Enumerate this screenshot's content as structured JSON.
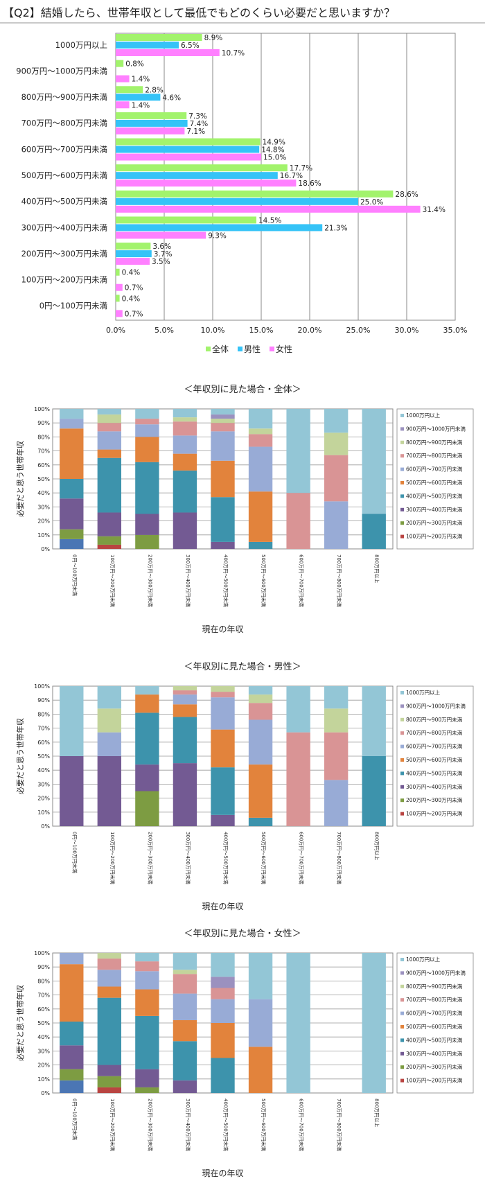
{
  "title": "【Q2】結婚したら、世帯年収として最低でもどのくらい必要だと思いますか？",
  "colors": {
    "all": "#a2f36c",
    "male": "#35c3f7",
    "female": "#ff80ff",
    "c1000": "#93c6d6",
    "c900": "#9b91bf",
    "c800": "#c3d49b",
    "c700": "#d99495",
    "c600": "#98abd6",
    "c500": "#e2833c",
    "c400": "#3d93ac",
    "c300": "#735a93",
    "c200": "#7d9c42",
    "c100": "#b94441",
    "c0": "#4b76b4"
  },
  "chart_data": [
    {
      "type": "bar",
      "orientation": "horizontal",
      "categories": [
        "1000万円以上",
        "900万円～1000万円未満",
        "800万円～900万円未満",
        "700万円～800万円未満",
        "600万円～700万円未満",
        "500万円～600万円未満",
        "400万円～500万円未満",
        "300万円～400万円未満",
        "200万円～300万円未満",
        "100万円～200万円未満",
        "0円～100万円未満"
      ],
      "series": [
        {
          "name": "全体",
          "values": [
            8.9,
            0.8,
            2.8,
            7.3,
            14.9,
            17.7,
            28.6,
            14.5,
            3.6,
            0.4,
            0.4
          ],
          "labels": [
            "8.9%",
            "0.8%",
            "2.8%",
            "7.3%",
            "14.9%",
            "17.7%",
            "28.6%",
            "14.5%",
            "3.6%",
            "0.4%",
            "0.4%"
          ]
        },
        {
          "name": "男性",
          "values": [
            6.5,
            0,
            4.6,
            7.4,
            14.8,
            16.7,
            25.0,
            21.3,
            3.7,
            0,
            0
          ],
          "labels": [
            "6.5%",
            "",
            "4.6%",
            "7.4%",
            "14.8%",
            "16.7%",
            "25.0%",
            "21.3%",
            "3.7%",
            "",
            ""
          ]
        },
        {
          "name": "女性",
          "values": [
            10.7,
            1.4,
            1.4,
            7.1,
            15.0,
            18.6,
            31.4,
            9.3,
            3.5,
            0.7,
            0.7
          ],
          "labels": [
            "10.7%",
            "1.4%",
            "1.4%",
            "7.1%",
            "15.0%",
            "18.6%",
            "31.4%",
            "9.3%",
            "3.5%",
            "0.7%",
            "0.7%"
          ]
        }
      ],
      "xlim": [
        0,
        35
      ],
      "ticks": [
        "0.0%",
        "5.0%",
        "10.0%",
        "15.0%",
        "20.0%",
        "25.0%",
        "30.0%",
        "35.0%"
      ],
      "grid": true,
      "legend_position": "bottom"
    },
    {
      "type": "bar",
      "stacked": true,
      "title": "＜年収別に見た場合・全体＞",
      "ylabel": "必要だと思う世帯年収",
      "xlabel": "現在の年収",
      "categories": [
        "0円～100万円未満",
        "100万円～200万円未満",
        "200万円～300万円未満",
        "300万円～400万円未満",
        "400万円～500万円未満",
        "500万円～600万円未満",
        "600万円～700万円未満",
        "700万円～800万円未満",
        "800万円以上"
      ],
      "yticks": [
        "0%",
        "10%",
        "20%",
        "30%",
        "40%",
        "50%",
        "60%",
        "70%",
        "80%",
        "90%",
        "100%"
      ],
      "legend": [
        "1000万円以上",
        "900万円～1000万円未満",
        "800万円～900万円未満",
        "700万円～800万円未満",
        "600万円～700万円未満",
        "500万円～600万円未満",
        "400万円～500万円未満",
        "300万円～400万円未満",
        "200万円～300万円未満",
        "100万円～200万円未満"
      ],
      "legend_colors": [
        "c1000",
        "c900",
        "c800",
        "c700",
        "c600",
        "c500",
        "c400",
        "c300",
        "c200",
        "c100"
      ],
      "stacks": [
        [
          [
            "c0",
            7
          ],
          [
            "c200",
            7
          ],
          [
            "c300",
            22
          ],
          [
            "c400",
            14
          ],
          [
            "c500",
            36
          ],
          [
            "c600",
            7
          ],
          [
            "c1000",
            7
          ]
        ],
        [
          [
            "c100",
            3
          ],
          [
            "c200",
            6
          ],
          [
            "c300",
            17
          ],
          [
            "c400",
            39
          ],
          [
            "c500",
            6
          ],
          [
            "c600",
            13
          ],
          [
            "c700",
            6
          ],
          [
            "c800",
            6
          ],
          [
            "c1000",
            4
          ]
        ],
        [
          [
            "c200",
            10
          ],
          [
            "c300",
            15
          ],
          [
            "c400",
            37
          ],
          [
            "c500",
            18
          ],
          [
            "c600",
            9
          ],
          [
            "c700",
            4
          ],
          [
            "c1000",
            7
          ]
        ],
        [
          [
            "c300",
            26
          ],
          [
            "c400",
            30
          ],
          [
            "c500",
            12
          ],
          [
            "c600",
            13
          ],
          [
            "c700",
            10
          ],
          [
            "c800",
            3
          ],
          [
            "c1000",
            6
          ]
        ],
        [
          [
            "c300",
            5
          ],
          [
            "c400",
            32
          ],
          [
            "c500",
            26
          ],
          [
            "c600",
            21
          ],
          [
            "c700",
            6
          ],
          [
            "c800",
            3
          ],
          [
            "c900",
            3
          ],
          [
            "c1000",
            4
          ]
        ],
        [
          [
            "c400",
            5
          ],
          [
            "c500",
            36
          ],
          [
            "c600",
            32
          ],
          [
            "c700",
            9
          ],
          [
            "c800",
            4
          ],
          [
            "c1000",
            14
          ]
        ],
        [
          [
            "c700",
            40
          ],
          [
            "c1000",
            60
          ]
        ],
        [
          [
            "c600",
            34
          ],
          [
            "c700",
            33
          ],
          [
            "c800",
            16
          ],
          [
            "c1000",
            17
          ]
        ],
        [
          [
            "c400",
            25
          ],
          [
            "c1000",
            75
          ]
        ]
      ]
    },
    {
      "type": "bar",
      "stacked": true,
      "title": "＜年収別に見た場合・男性＞",
      "ylabel": "必要だと思う世帯年収",
      "xlabel": "現在の年収",
      "categories": [
        "0円～100万円未満",
        "100万円～200万円未満",
        "200万円～300万円未満",
        "300万円～400万円未満",
        "400万円～500万円未満",
        "500万円～600万円未満",
        "600万円～700万円未満",
        "700万円～800万円未満",
        "800万円以上"
      ],
      "yticks": [
        "0%",
        "10%",
        "20%",
        "30%",
        "40%",
        "50%",
        "60%",
        "70%",
        "80%",
        "90%",
        "100%"
      ],
      "legend": [
        "1000万円以上",
        "900万円～1000万円未満",
        "800万円～900万円未満",
        "700万円～800万円未満",
        "600万円～700万円未満",
        "500万円～600万円未満",
        "400万円～500万円未満",
        "300万円～400万円未満",
        "200万円～300万円未満",
        "100万円～200万円未満"
      ],
      "legend_colors": [
        "c1000",
        "c900",
        "c800",
        "c700",
        "c600",
        "c500",
        "c400",
        "c300",
        "c200",
        "c100"
      ],
      "stacks": [
        [
          [
            "c300",
            50
          ],
          [
            "c1000",
            50
          ]
        ],
        [
          [
            "c300",
            50
          ],
          [
            "c600",
            17
          ],
          [
            "c800",
            17
          ],
          [
            "c1000",
            16
          ]
        ],
        [
          [
            "c200",
            25
          ],
          [
            "c300",
            19
          ],
          [
            "c400",
            37
          ],
          [
            "c500",
            13
          ],
          [
            "c1000",
            6
          ]
        ],
        [
          [
            "c300",
            45
          ],
          [
            "c400",
            33
          ],
          [
            "c500",
            9
          ],
          [
            "c600",
            7
          ],
          [
            "c700",
            3
          ],
          [
            "c800",
            3
          ]
        ],
        [
          [
            "c300",
            8
          ],
          [
            "c400",
            34
          ],
          [
            "c500",
            27
          ],
          [
            "c600",
            23
          ],
          [
            "c700",
            4
          ],
          [
            "c800",
            4
          ]
        ],
        [
          [
            "c400",
            6
          ],
          [
            "c500",
            38
          ],
          [
            "c600",
            32
          ],
          [
            "c700",
            12
          ],
          [
            "c800",
            6
          ],
          [
            "c1000",
            6
          ]
        ],
        [
          [
            "c700",
            67
          ],
          [
            "c1000",
            33
          ]
        ],
        [
          [
            "c600",
            33
          ],
          [
            "c700",
            34
          ],
          [
            "c800",
            17
          ],
          [
            "c1000",
            16
          ]
        ],
        [
          [
            "c400",
            50
          ],
          [
            "c1000",
            50
          ]
        ]
      ]
    },
    {
      "type": "bar",
      "stacked": true,
      "title": "＜年収別に見た場合・女性＞",
      "ylabel": "必要だと思う世帯年収",
      "xlabel": "現在の年収",
      "categories": [
        "0円～100万円未満",
        "100万円～200万円未満",
        "200万円～300万円未満",
        "300万円～400万円未満",
        "400万円～500万円未満",
        "500万円～600万円未満",
        "600万円～700万円未満",
        "700万円～800万円未満",
        "800万円以上"
      ],
      "yticks": [
        "0%",
        "10%",
        "20%",
        "30%",
        "40%",
        "50%",
        "60%",
        "70%",
        "80%",
        "90%",
        "100%"
      ],
      "legend": [
        "1000万円以上",
        "900万円～1000万円未満",
        "800万円～900万円未満",
        "700万円～800万円未満",
        "600万円～700万円未満",
        "500万円～600万円未満",
        "400万円～500万円未満",
        "300万円～400万円未満",
        "200万円～300万円未満",
        "100万円～200万円未満"
      ],
      "legend_colors": [
        "c1000",
        "c900",
        "c800",
        "c700",
        "c600",
        "c500",
        "c400",
        "c300",
        "c200",
        "c100"
      ],
      "stacks": [
        [
          [
            "c0",
            9
          ],
          [
            "c200",
            8
          ],
          [
            "c300",
            17
          ],
          [
            "c400",
            17
          ],
          [
            "c500",
            41
          ],
          [
            "c600",
            8
          ]
        ],
        [
          [
            "c100",
            4
          ],
          [
            "c200",
            8
          ],
          [
            "c300",
            8
          ],
          [
            "c400",
            48
          ],
          [
            "c500",
            8
          ],
          [
            "c600",
            12
          ],
          [
            "c700",
            8
          ],
          [
            "c800",
            4
          ]
        ],
        [
          [
            "c200",
            4
          ],
          [
            "c300",
            13
          ],
          [
            "c400",
            38
          ],
          [
            "c500",
            19
          ],
          [
            "c600",
            13
          ],
          [
            "c700",
            7
          ],
          [
            "c1000",
            6
          ]
        ],
        [
          [
            "c300",
            9
          ],
          [
            "c400",
            28
          ],
          [
            "c500",
            15
          ],
          [
            "c600",
            19
          ],
          [
            "c700",
            14
          ],
          [
            "c800",
            3
          ],
          [
            "c1000",
            12
          ]
        ],
        [
          [
            "c400",
            25
          ],
          [
            "c500",
            25
          ],
          [
            "c600",
            17
          ],
          [
            "c700",
            8
          ],
          [
            "c900",
            8
          ],
          [
            "c1000",
            17
          ]
        ],
        [
          [
            "c500",
            33
          ],
          [
            "c600",
            34
          ],
          [
            "c1000",
            33
          ]
        ],
        [
          [
            "c1000",
            100
          ]
        ],
        [],
        [
          [
            "c1000",
            100
          ]
        ]
      ]
    }
  ]
}
